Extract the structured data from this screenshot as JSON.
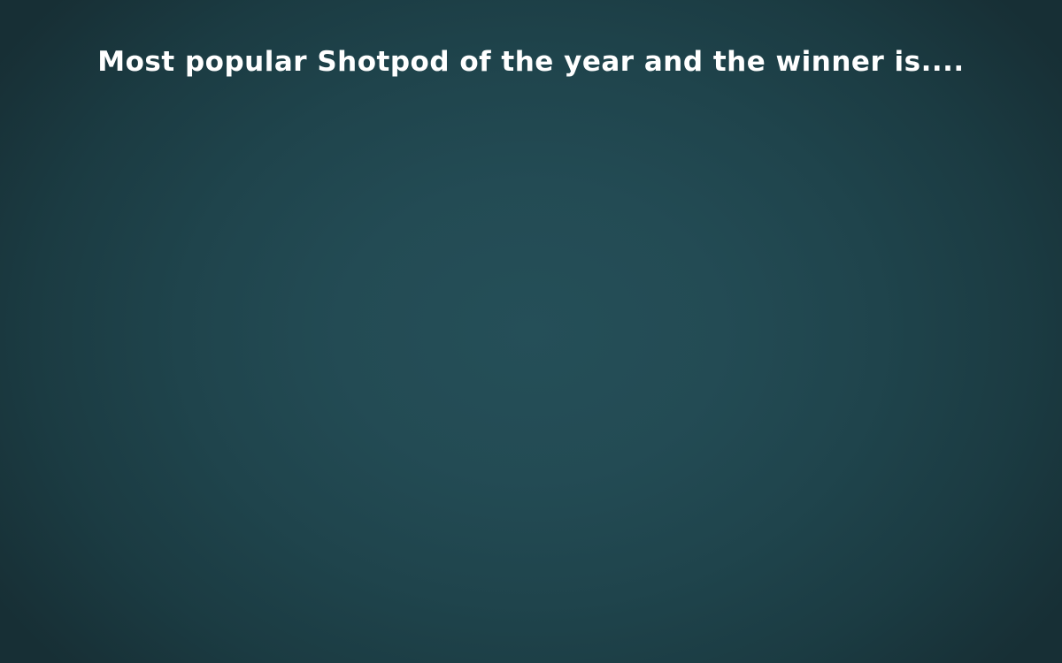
{
  "slide": {
    "title": "Most popular Shotpod of the year and the winner is....",
    "background_color": "#234b54",
    "title_color": "#ffffff"
  }
}
